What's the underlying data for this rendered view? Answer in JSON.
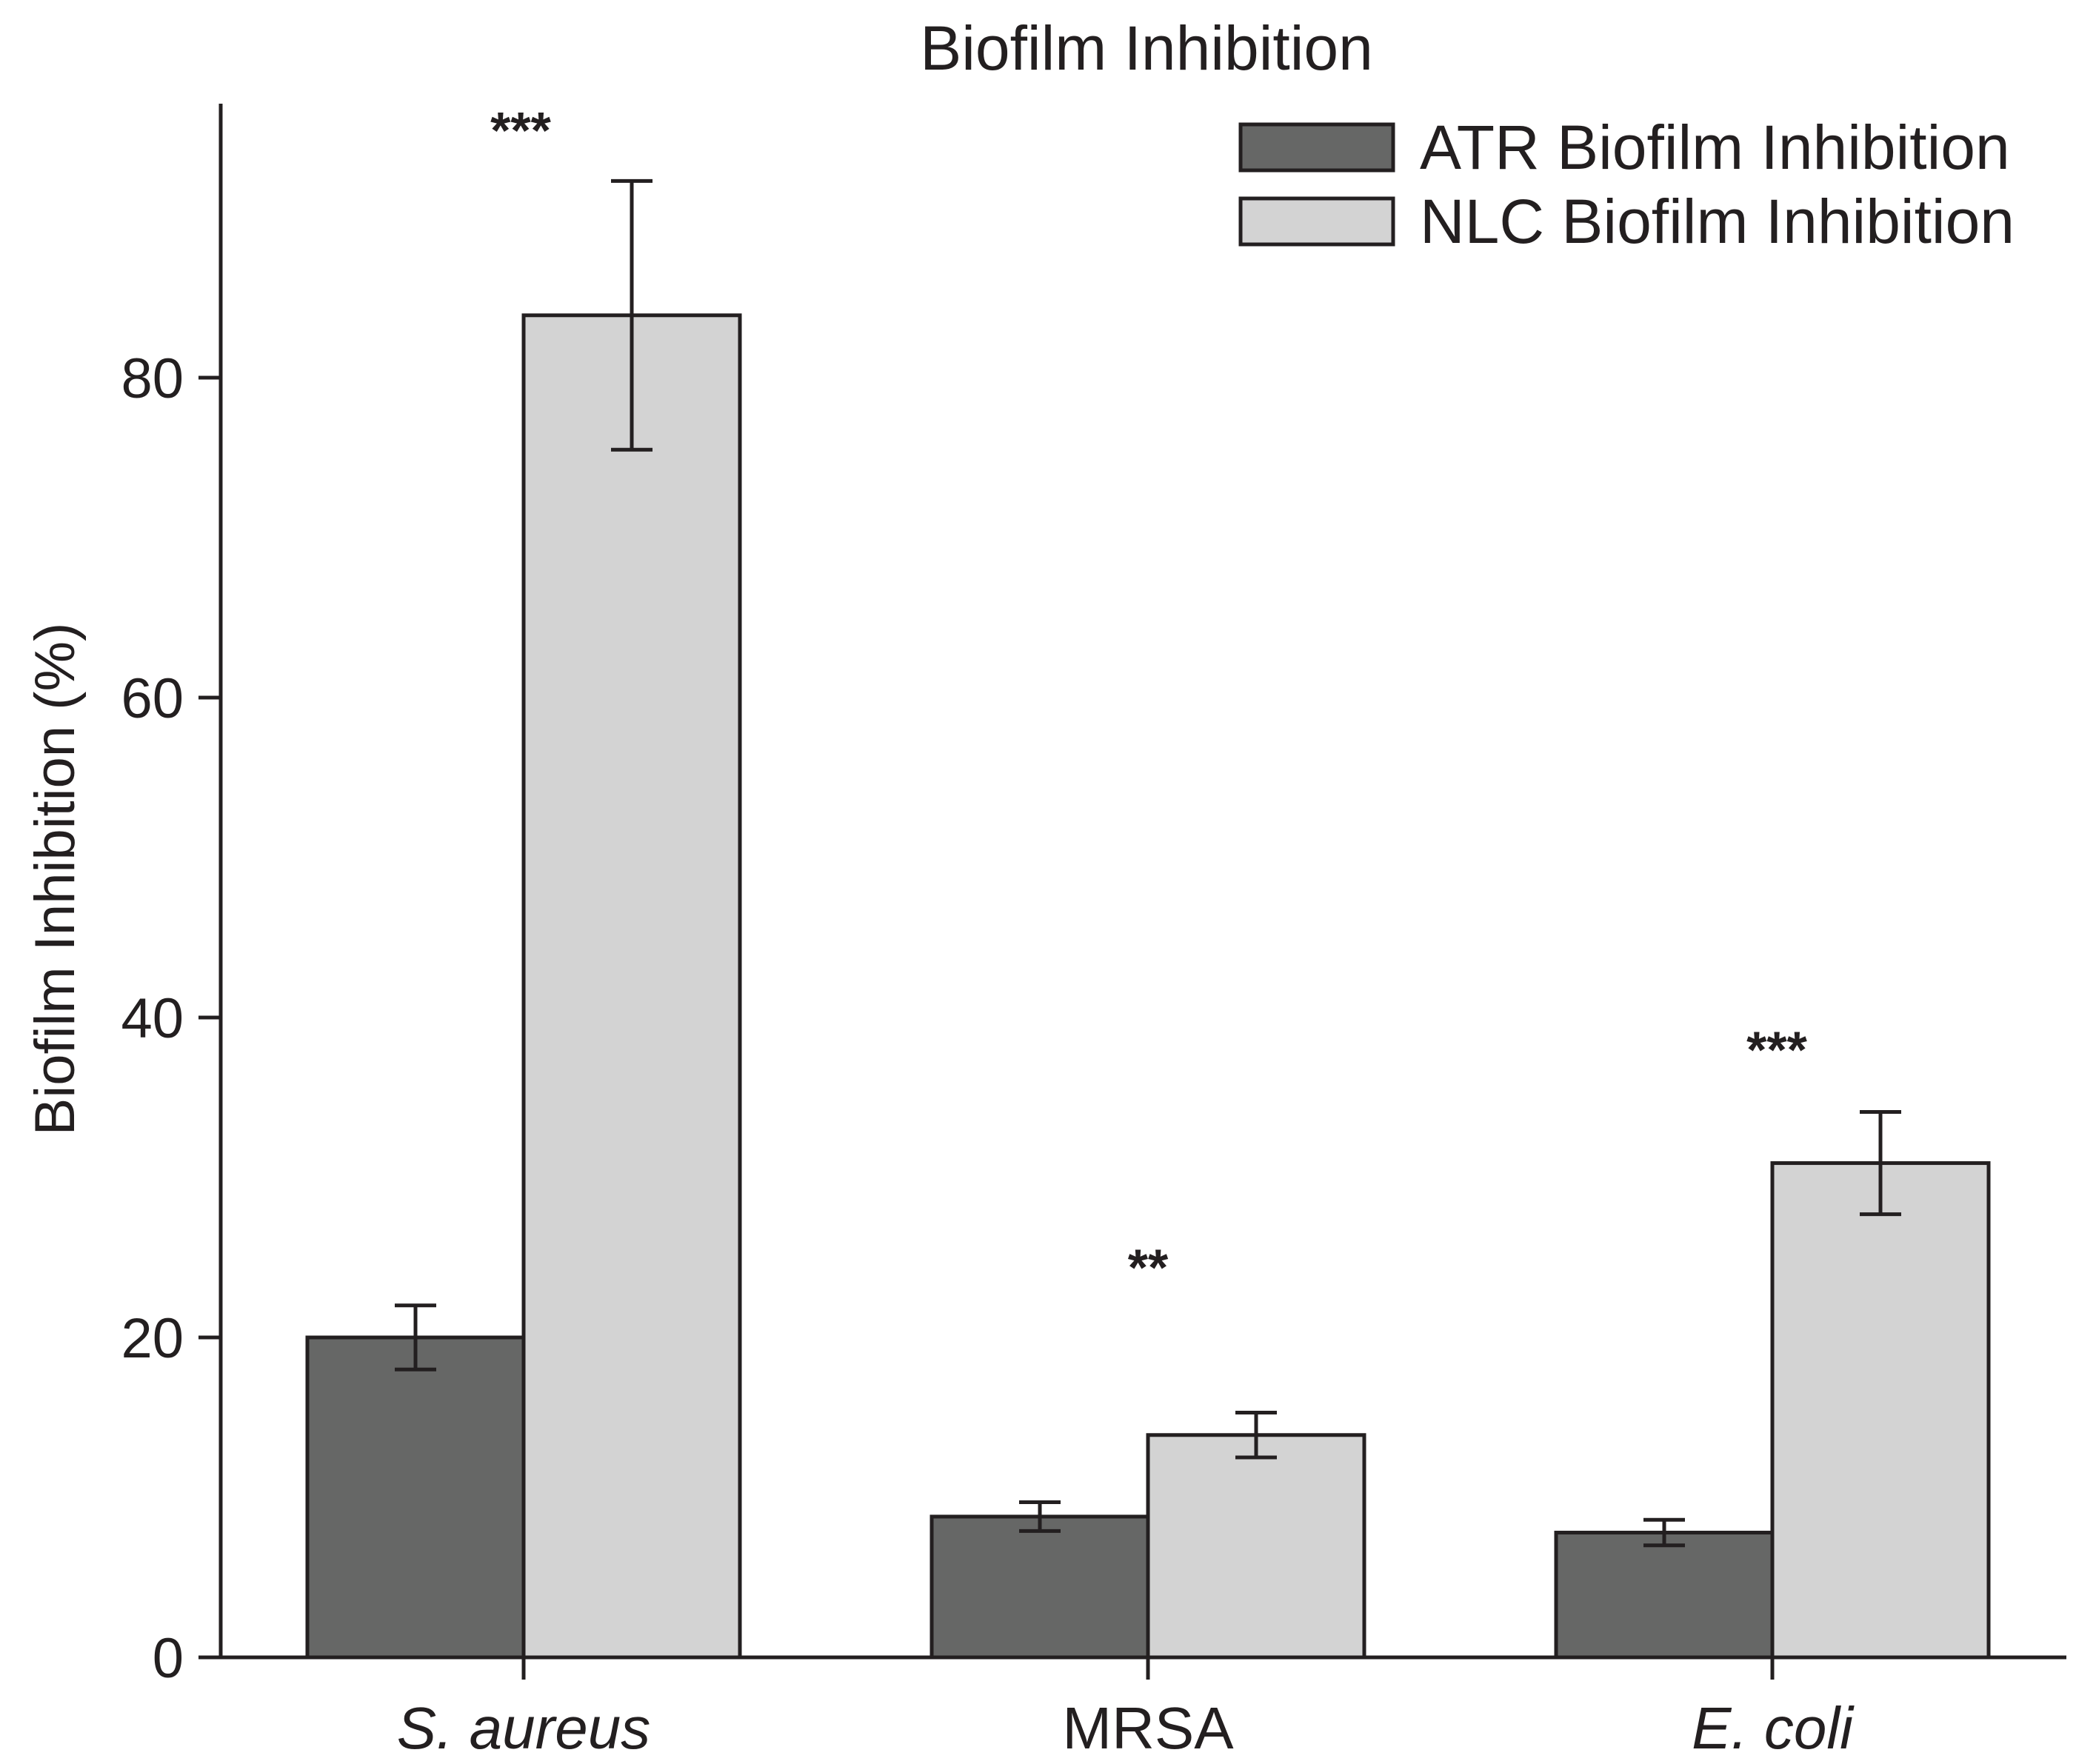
{
  "chart_data": {
    "type": "bar",
    "title": "Biofilm Inhibition",
    "xlabel": "",
    "ylabel": "Biofilm Inhibition (%)",
    "ylim": [
      0,
      97
    ],
    "yticks": [
      0,
      20,
      40,
      60,
      80
    ],
    "categories": [
      "S. aureus",
      "MRSA",
      "E. coli"
    ],
    "category_italic": [
      true,
      false,
      true
    ],
    "series": [
      {
        "name": "ATR Biofilm Inhibition",
        "color": "#666766",
        "values": [
          20,
          8.8,
          7.8
        ],
        "errors": [
          2.0,
          0.9,
          0.8
        ]
      },
      {
        "name": "NLC Biofilm Inhibition",
        "color": "#d3d3d3",
        "values": [
          83.9,
          13.9,
          30.9
        ],
        "errors": [
          8.4,
          1.4,
          3.2
        ]
      }
    ],
    "significance": [
      "***",
      "**",
      "***"
    ],
    "legend_position": "top-right",
    "grid": false,
    "bar_edge_color": "#231f20",
    "axis_color": "#231f20"
  }
}
